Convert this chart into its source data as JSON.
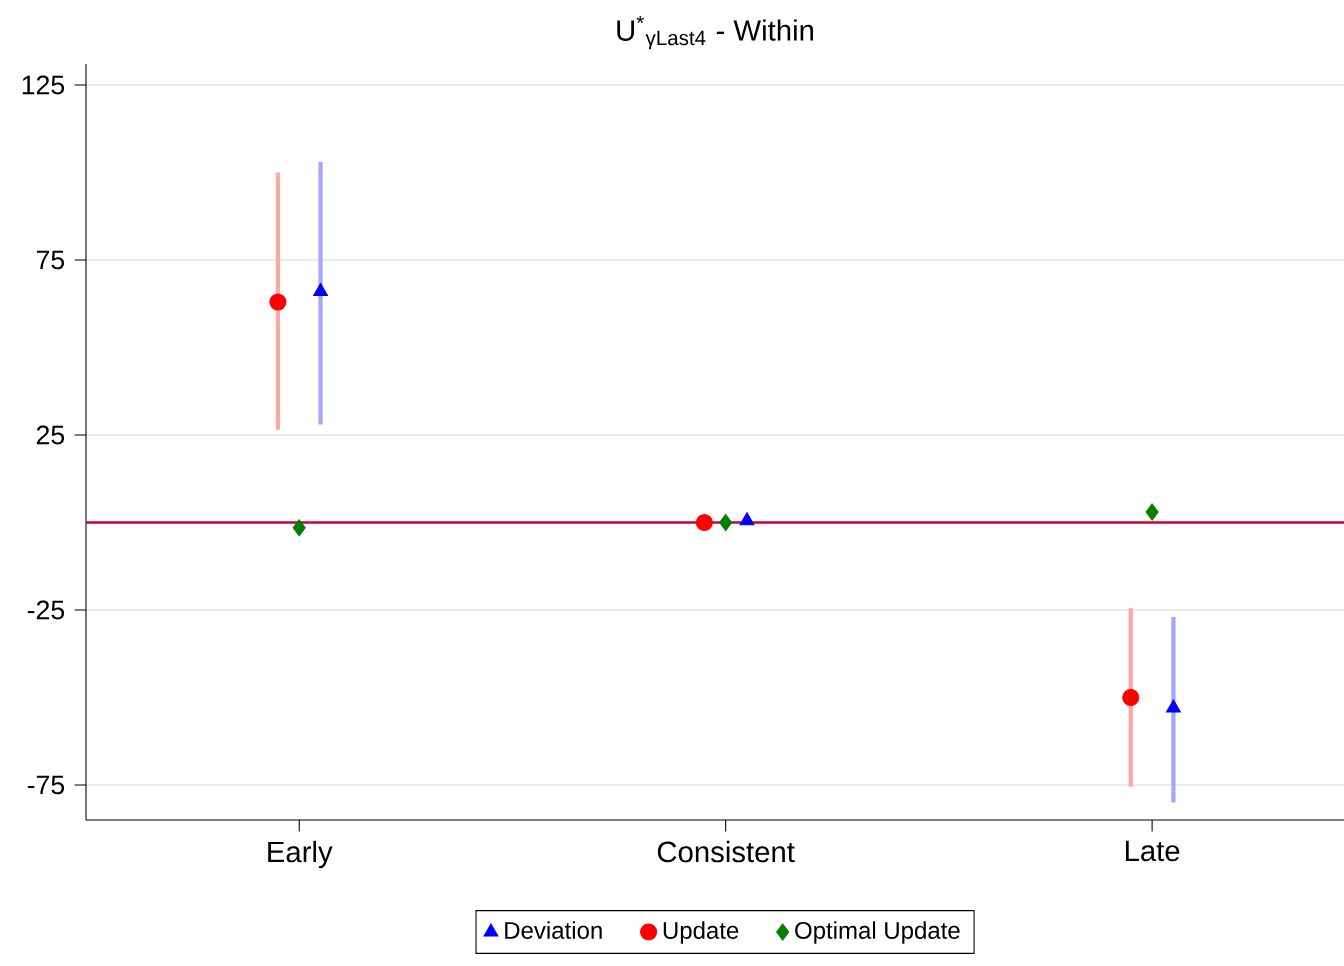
{
  "chart_data": {
    "type": "scatter",
    "title": "U$^{*}$$_{γLast4}$ - Within",
    "categories": [
      "Early",
      "Consistent",
      "Late"
    ],
    "series": [
      {
        "name": "Deviation",
        "color": "#0000ff",
        "marker": "triangle",
        "values": [
          66,
          0.5,
          -53
        ],
        "errors": [
          [
            28,
            103
          ],
          null,
          [
            -80,
            -27
          ]
        ]
      },
      {
        "name": "Update",
        "color": "#ff0000",
        "marker": "circle",
        "values": [
          63,
          0,
          -50
        ],
        "errors": [
          [
            26.5,
            100
          ],
          null,
          [
            -75.5,
            -24.5
          ]
        ]
      },
      {
        "name": "Optimal Update",
        "color": "#008000",
        "marker": "diamond",
        "values": [
          -1.5,
          0,
          3
        ]
      }
    ],
    "ylim": [
      -85,
      131
    ],
    "yticks": [
      -75,
      -25,
      25,
      75,
      125
    ],
    "ref_lines": [
      {
        "axis": "y",
        "value": 0,
        "color": "#c8003c"
      }
    ],
    "grid": "y",
    "legend": "bottom"
  }
}
